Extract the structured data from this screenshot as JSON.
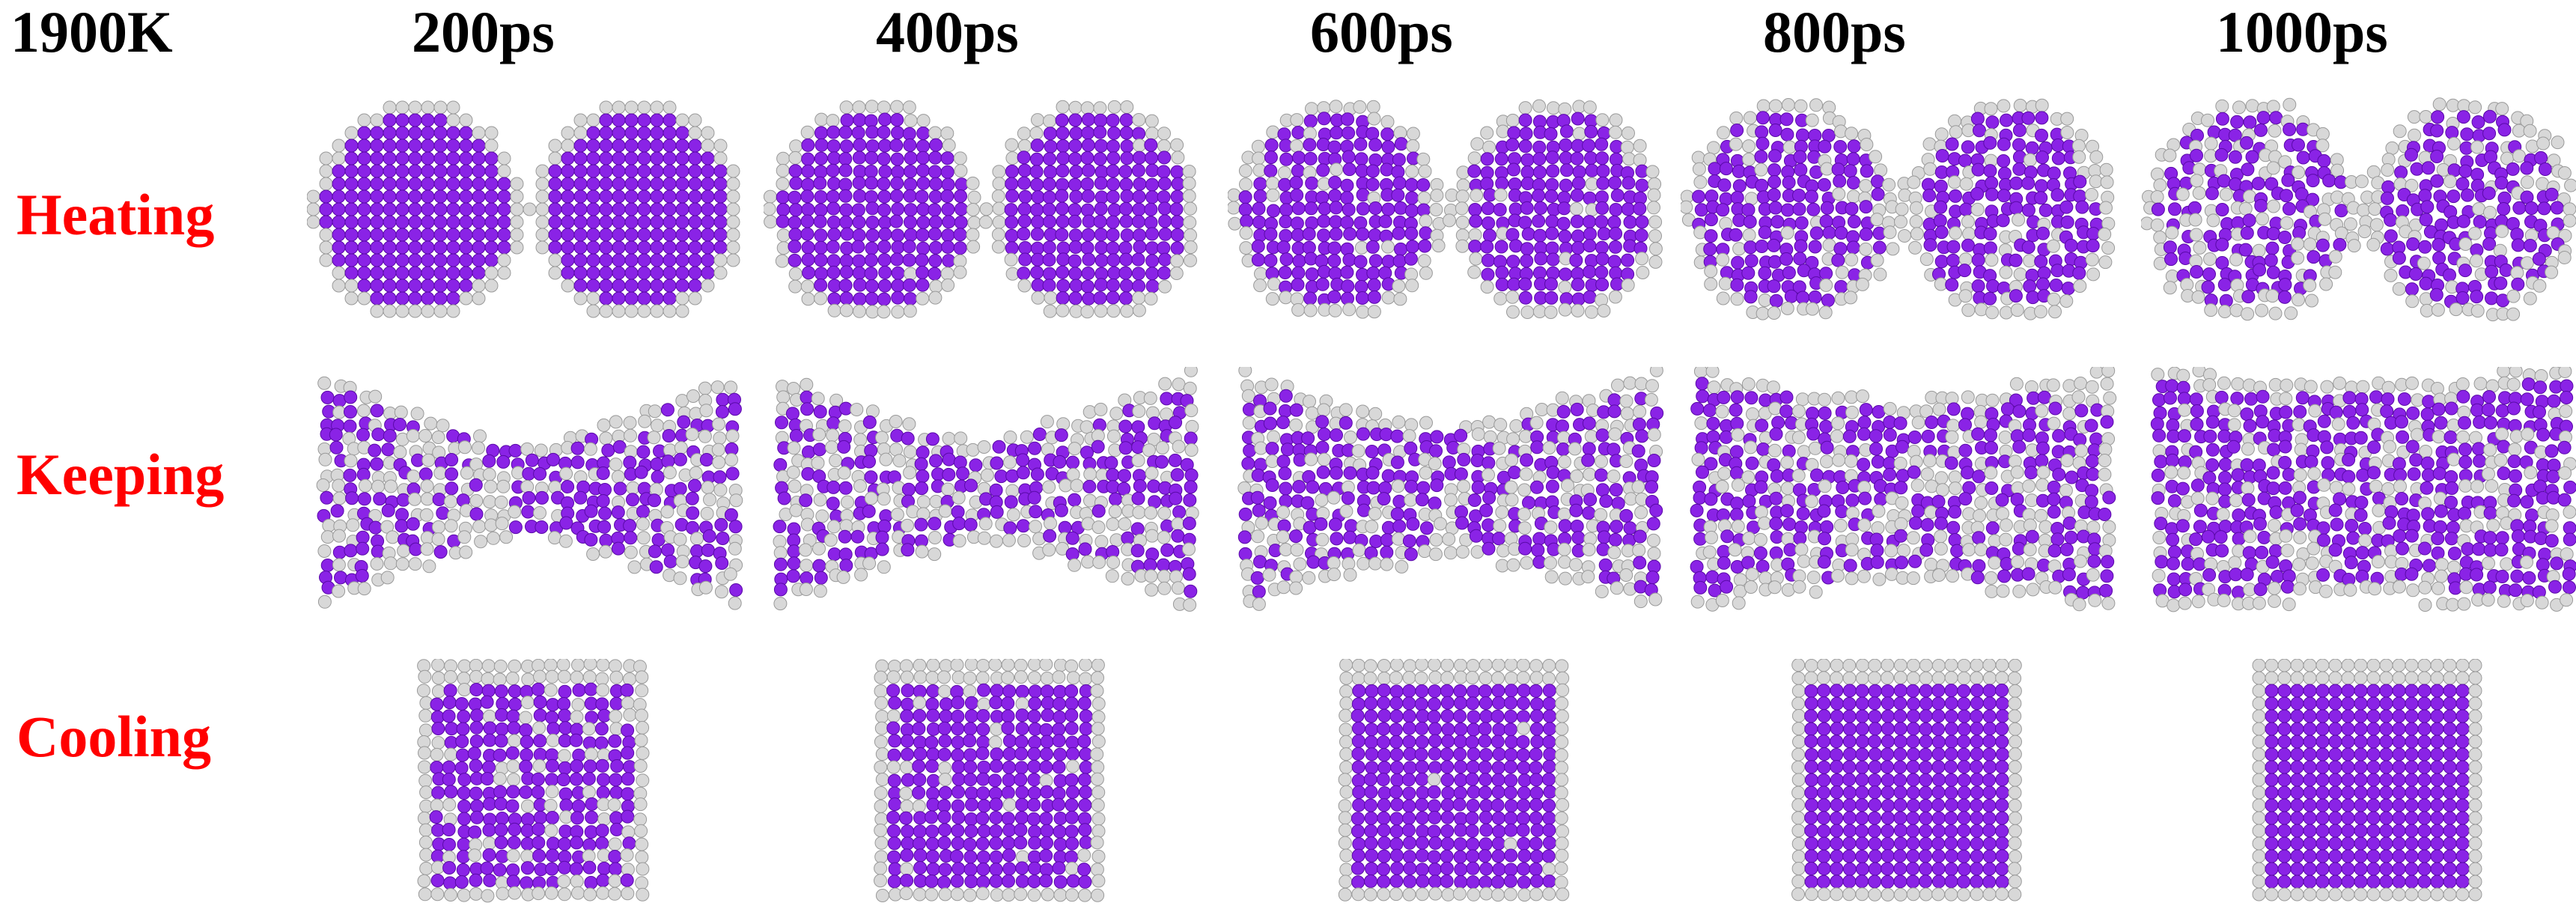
{
  "temperature_label": "1900K",
  "time_labels": [
    "200ps",
    "400ps",
    "600ps",
    "800ps",
    "1000ps"
  ],
  "row_labels": [
    "Heating",
    "Keeping",
    "Cooling"
  ],
  "colors": {
    "row_label": "#ff0000",
    "atom_primary": "#8a23e6",
    "atom_surface": "#d8d8d8",
    "text": "#000000"
  }
}
